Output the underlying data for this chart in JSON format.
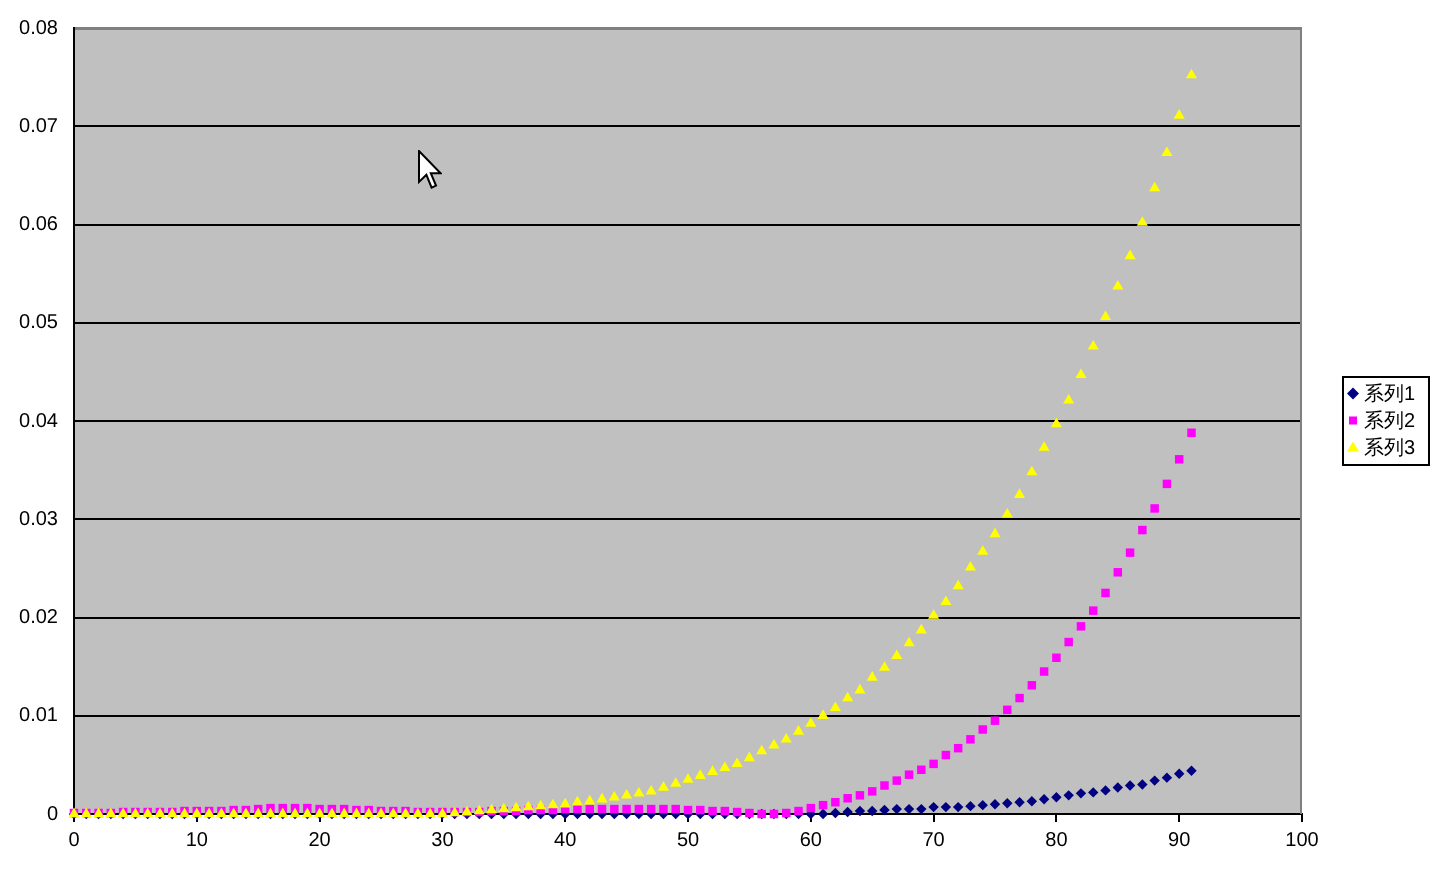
{
  "chart_data": {
    "type": "scatter",
    "x": [
      0,
      1,
      2,
      3,
      4,
      5,
      6,
      7,
      8,
      9,
      10,
      11,
      12,
      13,
      14,
      15,
      16,
      17,
      18,
      19,
      20,
      21,
      22,
      23,
      24,
      25,
      26,
      27,
      28,
      29,
      30,
      31,
      32,
      33,
      34,
      35,
      36,
      37,
      38,
      39,
      40,
      41,
      42,
      43,
      44,
      45,
      46,
      47,
      48,
      49,
      50,
      51,
      52,
      53,
      54,
      55,
      56,
      57,
      58,
      59,
      60,
      61,
      62,
      63,
      64,
      65,
      66,
      67,
      68,
      69,
      70,
      71,
      72,
      73,
      74,
      75,
      76,
      77,
      78,
      79,
      80,
      81,
      82,
      83,
      84,
      85,
      86,
      87,
      88,
      89,
      90,
      91
    ],
    "series": [
      {
        "name": "系列1",
        "color": "#000080",
        "marker": "diamond",
        "values": [
          0,
          0,
          0,
          0,
          0,
          0,
          0,
          0,
          0,
          0,
          0,
          0,
          0,
          0,
          0,
          0,
          0,
          0,
          0,
          0,
          0,
          0,
          0,
          0,
          0,
          0,
          0,
          0,
          0,
          0,
          0,
          0,
          0,
          0,
          0,
          0,
          0,
          0,
          0,
          0,
          0,
          0,
          0,
          0,
          0,
          0,
          0,
          0,
          0,
          0,
          0,
          0,
          0,
          0,
          0,
          0,
          0,
          0,
          0,
          0,
          0,
          0,
          0.0001,
          0.0002,
          0.0003,
          0.0003,
          0.0004,
          0.0005,
          0.0005,
          0.0005,
          0.0007,
          0.0007,
          0.0007,
          0.0008,
          0.0009,
          0.001,
          0.0011,
          0.0012,
          0.0013,
          0.0015,
          0.0017,
          0.0019,
          0.0021,
          0.0022,
          0.0024,
          0.0027,
          0.0029,
          0.003,
          0.0034,
          0.0037,
          0.0041,
          0.0044
        ]
      },
      {
        "name": "系列2",
        "color": "#ff00ff",
        "marker": "square",
        "values": [
          0.0001,
          0.0001,
          0.0001,
          0.0001,
          0.0002,
          0.0002,
          0.0002,
          0.0002,
          0.0002,
          0.0003,
          0.0003,
          0.0003,
          0.0003,
          0.0004,
          0.0004,
          0.0005,
          0.0006,
          0.0006,
          0.0006,
          0.0006,
          0.0005,
          0.0005,
          0.0005,
          0.0004,
          0.0004,
          0.0003,
          0.0003,
          0.0003,
          0.0002,
          0.0002,
          0.0002,
          0.0002,
          0.0002,
          0.0002,
          0.0003,
          0.0003,
          0.0003,
          0.0004,
          0.0004,
          0.0004,
          0.0005,
          0.0005,
          0.0005,
          0.0005,
          0.0005,
          0.0005,
          0.0005,
          0.0005,
          0.0005,
          0.0005,
          0.0004,
          0.0004,
          0.0003,
          0.0003,
          0.0002,
          0.0001,
          0,
          0,
          0.0001,
          0.0003,
          0.0006,
          0.0009,
          0.0012,
          0.0016,
          0.0019,
          0.0023,
          0.0029,
          0.0034,
          0.004,
          0.0045,
          0.0051,
          0.006,
          0.0067,
          0.0076,
          0.0086,
          0.0095,
          0.0106,
          0.0118,
          0.0131,
          0.0145,
          0.0159,
          0.0175,
          0.0191,
          0.0207,
          0.0225,
          0.0246,
          0.0266,
          0.0289,
          0.0311,
          0.0336,
          0.0361,
          0.0388
        ]
      },
      {
        "name": "系列3",
        "color": "#ffff00",
        "marker": "triangle",
        "values": [
          0,
          0,
          0,
          0,
          0,
          0,
          0,
          0,
          0,
          0,
          0,
          0,
          0,
          0,
          0,
          0,
          0,
          0,
          0,
          0,
          0,
          0,
          0,
          0,
          0,
          0,
          0,
          0,
          0,
          0,
          0,
          0.0001,
          0.0002,
          0.0003,
          0.0004,
          0.0005,
          0.0006,
          0.0007,
          0.0008,
          0.0009,
          0.001,
          0.0012,
          0.0013,
          0.0015,
          0.0017,
          0.0019,
          0.0021,
          0.0023,
          0.0027,
          0.0031,
          0.0035,
          0.0039,
          0.0043,
          0.0047,
          0.0051,
          0.0057,
          0.0064,
          0.007,
          0.0076,
          0.0084,
          0.0092,
          0.01,
          0.0108,
          0.0118,
          0.0126,
          0.0139,
          0.0149,
          0.0161,
          0.0174,
          0.0187,
          0.0202,
          0.0216,
          0.0232,
          0.0251,
          0.0267,
          0.0285,
          0.0305,
          0.0325,
          0.0348,
          0.0373,
          0.0397,
          0.0421,
          0.0447,
          0.0476,
          0.0506,
          0.0537,
          0.0568,
          0.0602,
          0.0637,
          0.0673,
          0.0711,
          0.0752
        ]
      }
    ],
    "xlim": [
      0,
      100
    ],
    "xticks": [
      0,
      10,
      20,
      30,
      40,
      50,
      60,
      70,
      80,
      90,
      100
    ],
    "ylim": [
      0,
      0.08
    ],
    "yticks": [
      0,
      0.01,
      0.02,
      0.03,
      0.04,
      0.05,
      0.06,
      0.07,
      0.08
    ],
    "grid": "y",
    "legend": "right"
  }
}
